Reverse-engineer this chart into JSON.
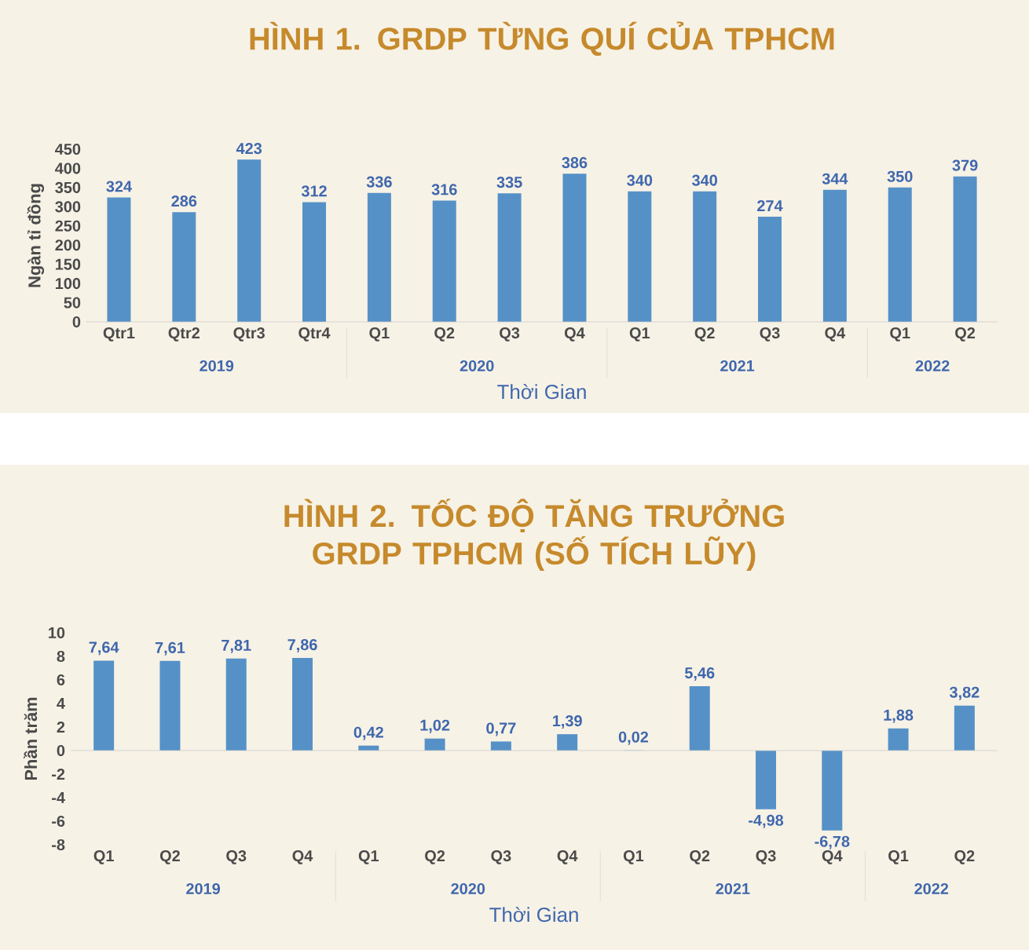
{
  "chart_data": [
    {
      "type": "bar",
      "title": "HÌNH 1. GRDP TỪNG QUÍ CỦA TPHCM",
      "xlabel": "Thời Gian",
      "ylabel": "Ngàn tỉ đồng",
      "categories": [
        "Qtr1",
        "Qtr2",
        "Qtr3",
        "Qtr4",
        "Q1",
        "Q2",
        "Q3",
        "Q4",
        "Q1",
        "Q2",
        "Q3",
        "Q4",
        "Q1",
        "Q2"
      ],
      "values": [
        324,
        286,
        423,
        312,
        336,
        316,
        335,
        386,
        340,
        340,
        274,
        344,
        350,
        379
      ],
      "color": "#5591c7",
      "ylim": [
        0,
        450
      ],
      "yticks": [
        0,
        50,
        100,
        150,
        200,
        250,
        300,
        350,
        400,
        450
      ],
      "data_labels": true,
      "annotations": [
        "2019",
        "2020",
        "2021",
        "2022"
      ]
    },
    {
      "type": "bar",
      "title": "HÌNH 2. TỐC ĐỘ TĂNG TRƯỞNG GRDP TPHCM (SỐ TÍCH LŨY)",
      "xlabel": "Thời Gian",
      "ylabel": "Phần trăm",
      "categories": [
        "Q1",
        "Q2",
        "Q3",
        "Q4",
        "Q1",
        "Q2",
        "Q3",
        "Q4",
        "Q1",
        "Q2",
        "Q3",
        "Q4",
        "Q1",
        "Q2"
      ],
      "values": [
        7.64,
        7.61,
        7.81,
        7.86,
        0.42,
        1.02,
        0.77,
        1.39,
        0.02,
        5.46,
        -4.98,
        -6.78,
        1.88,
        3.82
      ],
      "value_labels": [
        "7,64",
        "7,61",
        "7,81",
        "7,86",
        "0,42",
        "1,02",
        "0,77",
        "1,39",
        "0,02",
        "5,46",
        "-4,98",
        "-6,78",
        "1,88",
        "3,82"
      ],
      "color": "#5591c7",
      "ylim": [
        -8,
        10
      ],
      "yticks": [
        -8,
        -6,
        -4,
        -2,
        0,
        2,
        4,
        6,
        8,
        10
      ],
      "annotations": [
        "2019",
        "2020",
        "2021",
        "2022"
      ]
    }
  ]
}
